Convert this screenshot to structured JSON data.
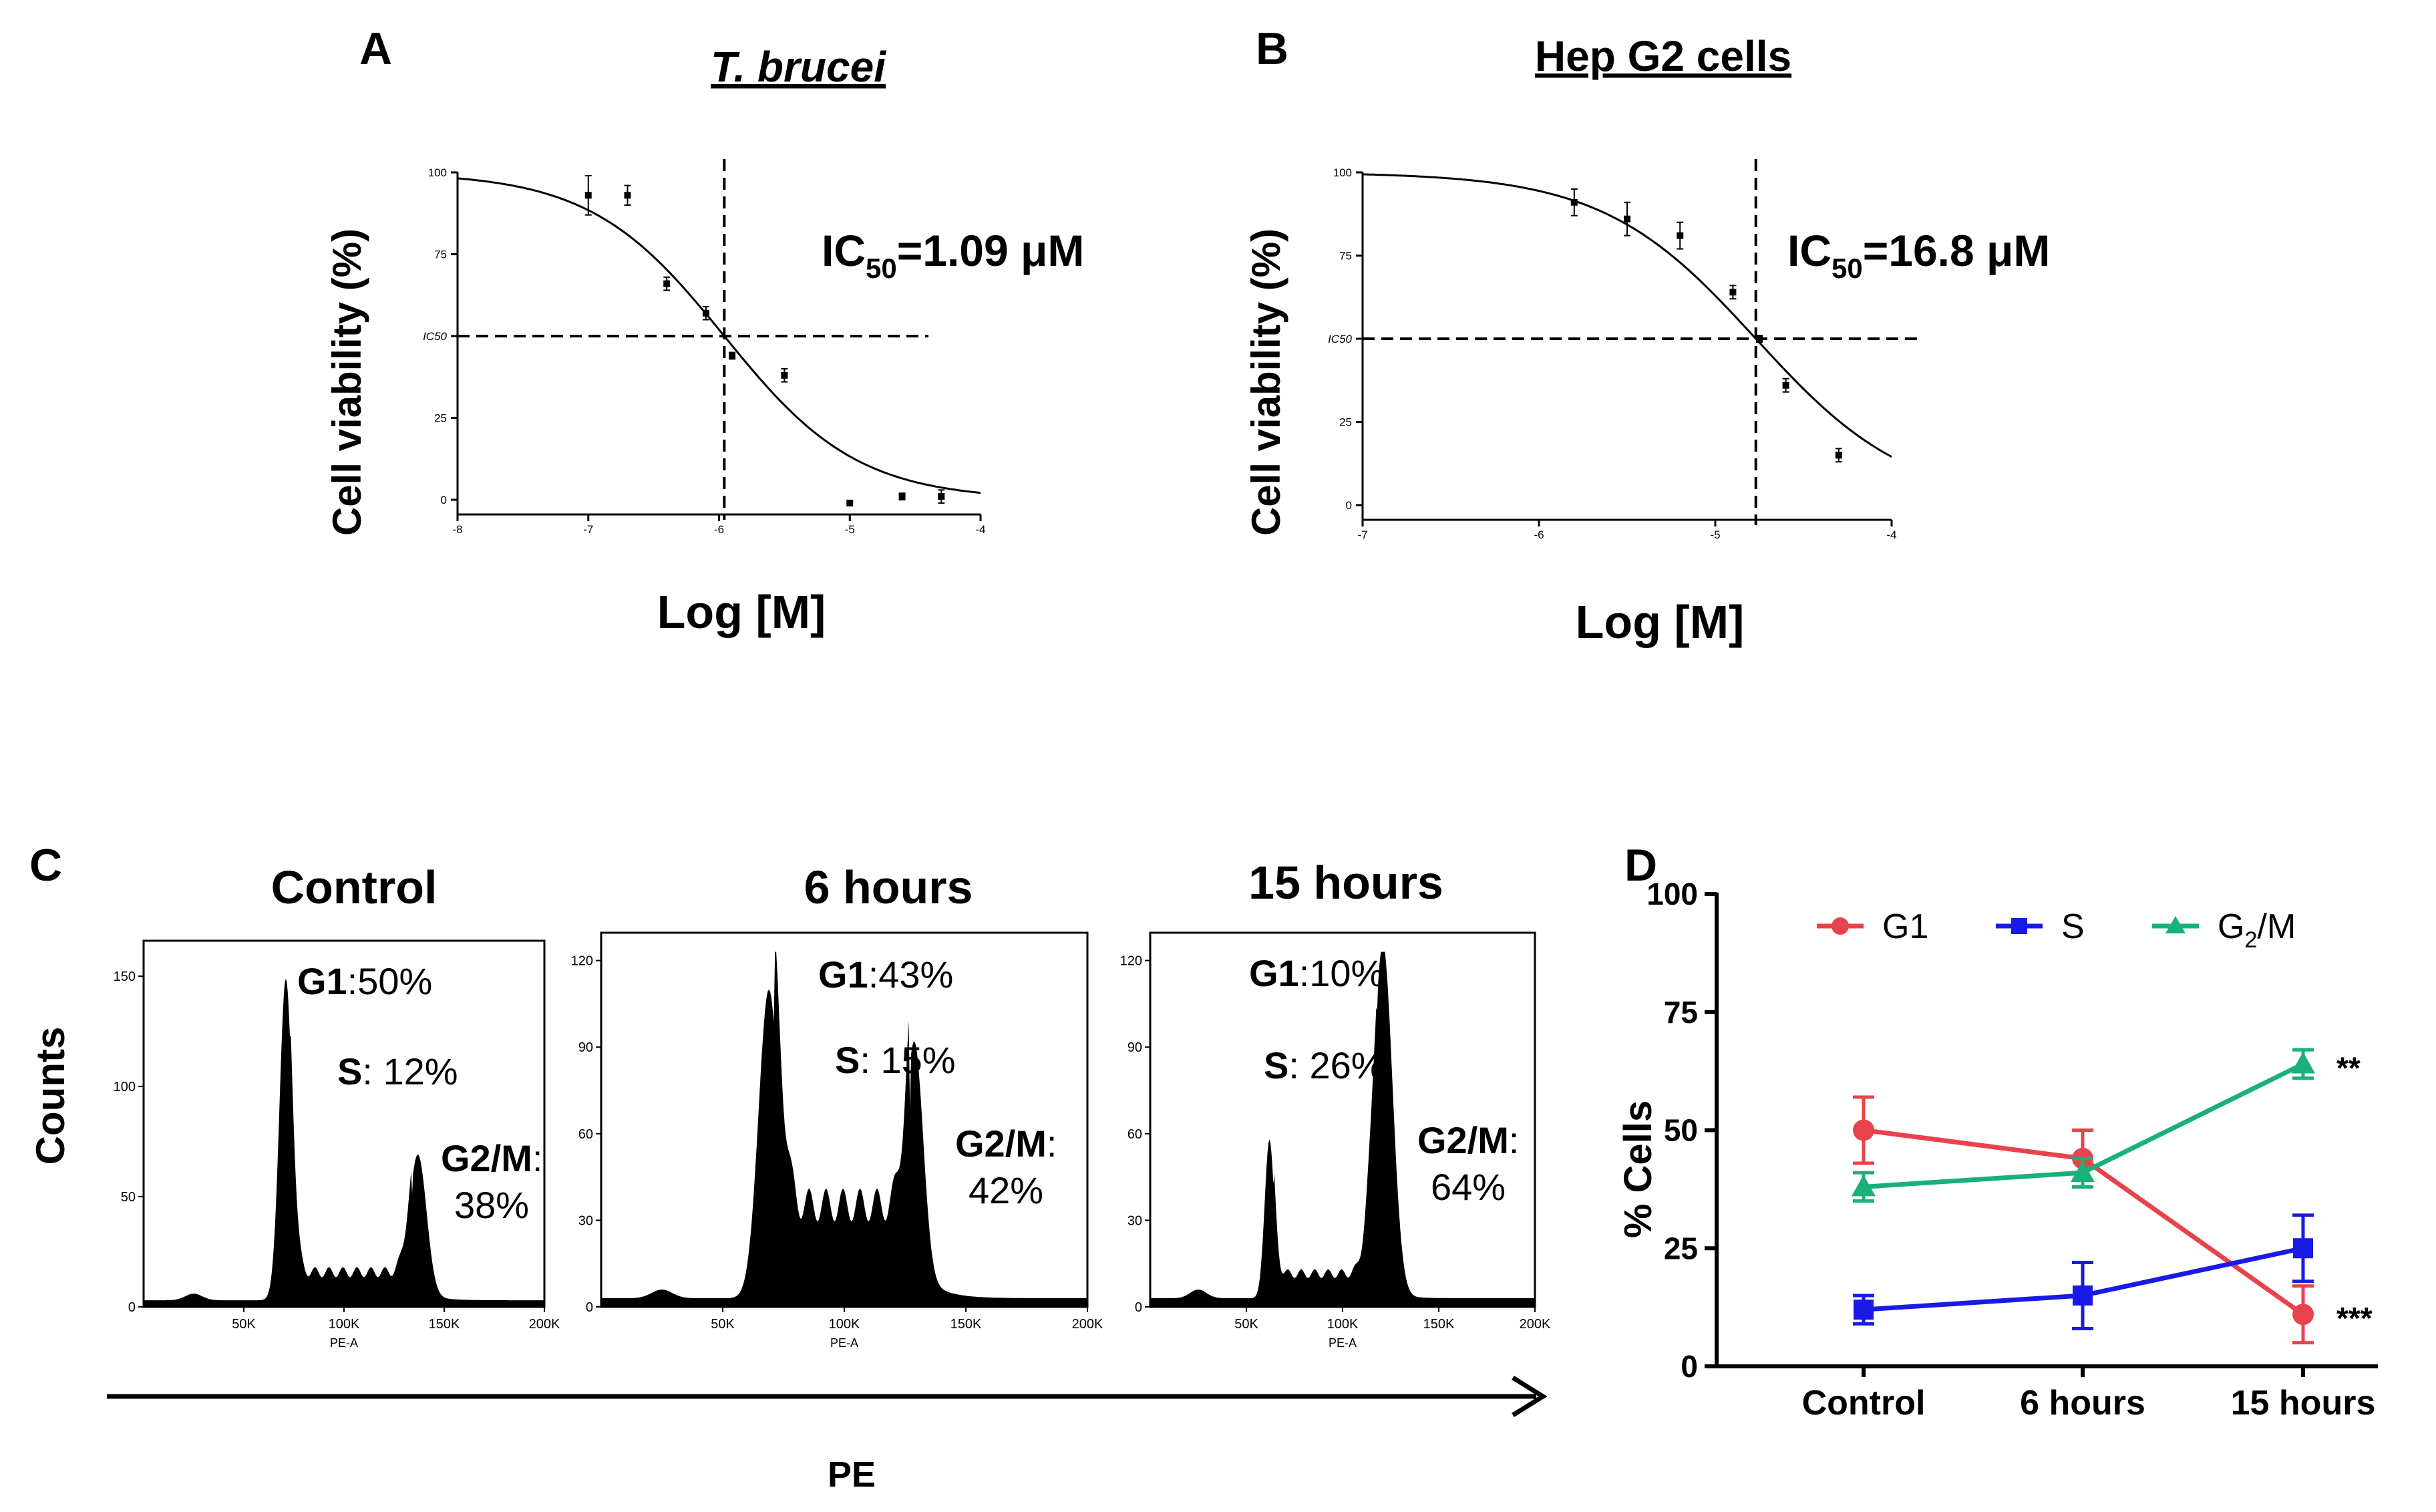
{
  "figure": {
    "panel_letters": [
      "A",
      "B",
      "C",
      "D"
    ],
    "x_axis_label_pe": "PE",
    "colors": {
      "g1": "#e8434c",
      "s": "#1a1ae6",
      "g2m": "#1ab07a",
      "ink": "#000000"
    }
  },
  "chart_data": [
    {
      "id": "A",
      "type": "line",
      "title": "T. brucei",
      "xlabel": "Log [M]",
      "ylabel": "Cell viability (%)",
      "xlim": [
        -8,
        -4
      ],
      "ylim": [
        0,
        100
      ],
      "xticks": [
        "-8",
        "-7",
        "-6",
        "-5",
        "-4"
      ],
      "yticks": [
        "0",
        "25",
        "IC50",
        "75",
        "100"
      ],
      "annotation": {
        "prefix": "IC",
        "sub": "50",
        "suffix": "=1.09 μM"
      },
      "ic50_log": -5.96,
      "hill_slope": -0.85,
      "points": [
        {
          "x": -7.0,
          "y": 93,
          "err": 6
        },
        {
          "x": -6.7,
          "y": 93,
          "err": 3
        },
        {
          "x": -6.4,
          "y": 66,
          "err": 2
        },
        {
          "x": -6.1,
          "y": 57,
          "err": 2
        },
        {
          "x": -5.9,
          "y": 44,
          "err": 1
        },
        {
          "x": -5.5,
          "y": 38,
          "err": 2
        },
        {
          "x": -5.0,
          "y": -1,
          "err": 0
        },
        {
          "x": -4.6,
          "y": 1,
          "err": 1
        },
        {
          "x": -4.3,
          "y": 1,
          "err": 2
        }
      ]
    },
    {
      "id": "B",
      "type": "line",
      "title": "Hep G2 cells",
      "xlabel": "Log [M]",
      "ylabel": "Cell viability (%)",
      "xlim": [
        -7,
        -4
      ],
      "ylim": [
        0,
        100
      ],
      "xticks": [
        "-7",
        "-6",
        "-5",
        "-4"
      ],
      "yticks": [
        "0",
        "25",
        "IC50",
        "75",
        "100"
      ],
      "annotation": {
        "prefix": "IC",
        "sub": "50",
        "suffix": "=16.8 μM"
      },
      "ic50_log": -4.77,
      "hill_slope": -1.0,
      "points": [
        {
          "x": -5.8,
          "y": 91,
          "err": 4
        },
        {
          "x": -5.5,
          "y": 86,
          "err": 5
        },
        {
          "x": -5.2,
          "y": 81,
          "err": 4
        },
        {
          "x": -4.9,
          "y": 64,
          "err": 2
        },
        {
          "x": -4.75,
          "y": 50,
          "err": 1
        },
        {
          "x": -4.6,
          "y": 36,
          "err": 2
        },
        {
          "x": -4.3,
          "y": 15,
          "err": 2
        }
      ]
    },
    {
      "id": "C",
      "type": "area",
      "ylabel": "Counts",
      "histograms": [
        {
          "title": "Control",
          "xlim": [
            0,
            200
          ],
          "ylim": [
            0,
            160
          ],
          "yticks": [
            "0",
            "50",
            "100",
            "150"
          ],
          "xticks": [
            "50K",
            "100K",
            "150K",
            "200K"
          ],
          "xlabel": "PE-A",
          "labels": [
            {
              "name": "G1",
              "value": ":50%"
            },
            {
              "name": "S",
              "value": ": 12%"
            },
            {
              "name": "G2/M",
              "value": ":",
              "value2": "38%"
            }
          ],
          "peaks": [
            {
              "center": 71,
              "height": 146,
              "width": 4.5
            },
            {
              "center": 137,
              "height": 62,
              "width": 6
            }
          ],
          "plateau": {
            "from": 73,
            "to": 134,
            "level": 15
          },
          "baseline": 3
        },
        {
          "title": "6 hours",
          "xlim": [
            0,
            200
          ],
          "ylim": [
            0,
            125
          ],
          "yticks": [
            "0",
            "30",
            "60",
            "90",
            "120"
          ],
          "xticks": [
            "50K",
            "100K",
            "150K",
            "200K"
          ],
          "xlabel": "PE-A",
          "labels": [
            {
              "name": "G1",
              "value": ":43%"
            },
            {
              "name": "S",
              "value": ": 15%"
            },
            {
              "name": "G2/M",
              "value": ":",
              "value2": "42%"
            }
          ],
          "peaks": [
            {
              "center": 69,
              "height": 107,
              "width": 6
            },
            {
              "center": 129,
              "height": 77,
              "width": 5
            }
          ],
          "plateau": {
            "from": 71,
            "to": 127,
            "level": 38
          },
          "baseline": 3
        },
        {
          "title": "15 hours",
          "xlim": [
            0,
            200
          ],
          "ylim": [
            0,
            125
          ],
          "yticks": [
            "0",
            "30",
            "60",
            "90",
            "120"
          ],
          "xticks": [
            "50K",
            "100K",
            "150K",
            "200K"
          ],
          "xlabel": "PE-A",
          "labels": [
            {
              "name": "G1",
              "value": ":10%"
            },
            {
              "name": "S",
              "value": ": 26%"
            },
            {
              "name": "G2/M",
              "value": ":",
              "value2": "64%"
            }
          ],
          "peaks": [
            {
              "center": 62,
              "height": 55,
              "width": 3.5
            },
            {
              "center": 121,
              "height": 120,
              "width": 7
            }
          ],
          "plateau": {
            "from": 64,
            "to": 118,
            "level": 10
          },
          "baseline": 3
        }
      ]
    },
    {
      "id": "D",
      "type": "line",
      "ylabel": "% Cells",
      "categories": [
        "Control",
        "6 hours",
        "15 hours"
      ],
      "ylim": [
        0,
        100
      ],
      "yticks": [
        "0",
        "25",
        "50",
        "75",
        "100"
      ],
      "series": [
        {
          "name": "G1",
          "sub": "",
          "values": [
            50,
            44,
            11
          ],
          "errors": [
            7,
            6,
            6
          ],
          "marker": "circle",
          "color": "#e8434c"
        },
        {
          "name": "S",
          "sub": "",
          "values": [
            12,
            15,
            25
          ],
          "errors": [
            3,
            7,
            7
          ],
          "marker": "square",
          "color": "#1a1ae6"
        },
        {
          "name": "G",
          "sub": "2",
          "suffix": "/M",
          "values": [
            38,
            41,
            64
          ],
          "errors": [
            3,
            3,
            3
          ],
          "marker": "triangle",
          "color": "#1ab07a"
        }
      ],
      "significance": [
        {
          "series": "G2/M",
          "category": "15 hours",
          "text": "**"
        },
        {
          "series": "G1",
          "category": "15 hours",
          "text": "***"
        }
      ]
    }
  ]
}
